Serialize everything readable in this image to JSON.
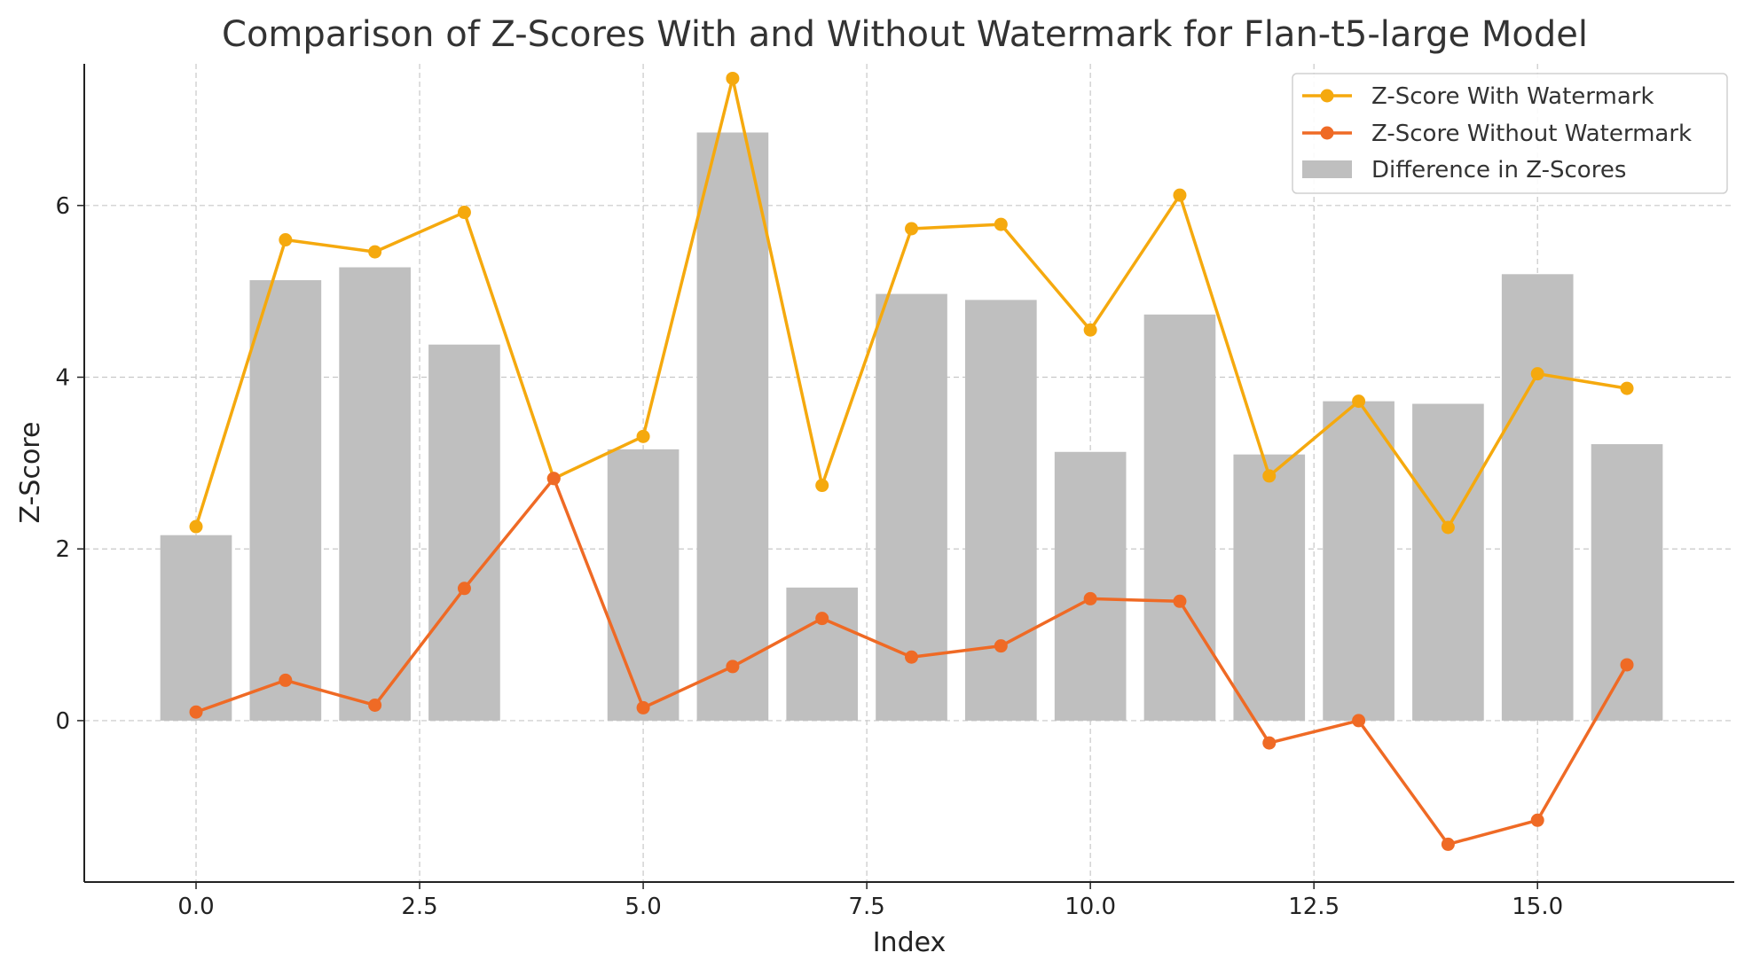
{
  "chart_data": {
    "type": "bar+line",
    "title": "Comparison of Z-Scores With and Without Watermark for Flan-t5-large Model",
    "xlabel": "Index",
    "ylabel": "Z-Score",
    "xlim": [
      -1.25,
      17.2
    ],
    "ylim": [
      -1.88,
      7.65
    ],
    "x_ticks": [
      0,
      2.5,
      5,
      7.5,
      10,
      12.5,
      15
    ],
    "x_tick_labels": [
      "0.0",
      "2.5",
      "5.0",
      "7.5",
      "10.0",
      "12.5",
      "15.0"
    ],
    "y_ticks": [
      0,
      2,
      4,
      6
    ],
    "y_tick_labels": [
      "0",
      "2",
      "4",
      "6"
    ],
    "grid": true,
    "legend_position": "top-right",
    "x": [
      0,
      1,
      2,
      3,
      4,
      5,
      6,
      7,
      8,
      9,
      10,
      11,
      12,
      13,
      14,
      15,
      16
    ],
    "series": [
      {
        "name": "Z-Score With Watermark",
        "kind": "line",
        "color": "#f5a90e",
        "values": [
          2.26,
          5.6,
          5.46,
          5.92,
          2.82,
          3.31,
          7.48,
          2.74,
          5.73,
          5.78,
          4.55,
          6.12,
          2.85,
          3.72,
          2.25,
          4.04,
          3.87
        ]
      },
      {
        "name": "Z-Score Without Watermark",
        "kind": "line",
        "color": "#ef6a25",
        "values": [
          0.1,
          0.47,
          0.18,
          1.54,
          2.82,
          0.15,
          0.63,
          1.19,
          0.74,
          0.87,
          1.42,
          1.39,
          -0.26,
          0.0,
          -1.44,
          -1.16,
          0.65
        ]
      },
      {
        "name": "Difference in Z-Scores",
        "kind": "bar",
        "color": "#bfbfbf",
        "values": [
          2.16,
          5.13,
          5.28,
          4.38,
          0.0,
          3.16,
          6.85,
          1.55,
          4.97,
          4.9,
          3.13,
          4.73,
          3.1,
          3.72,
          3.69,
          5.2,
          3.22
        ]
      }
    ]
  }
}
